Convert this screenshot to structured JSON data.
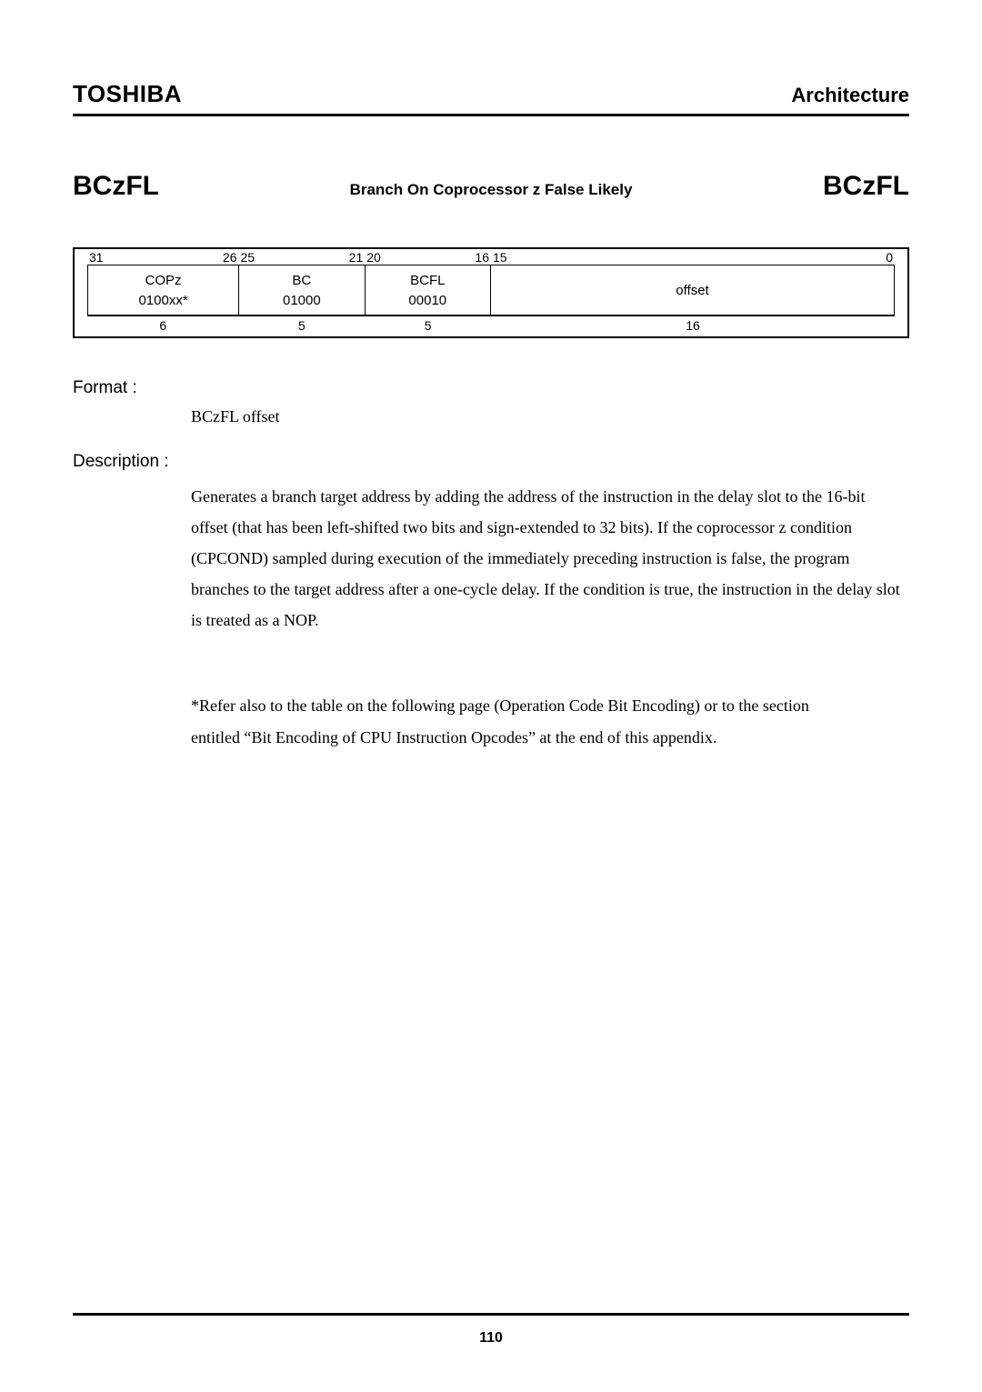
{
  "header": {
    "brand": "TOSHIBA",
    "section": "Architecture"
  },
  "instr": {
    "mnemonic_left": "BCzFL",
    "title": "Branch On Coprocessor z False Likely",
    "mnemonic_right": "BCzFL"
  },
  "encoding": {
    "bit_labels": {
      "f0_hi": "31",
      "f0_lo": "26",
      "f1_hi": "25",
      "f1_lo": "21",
      "f2_hi": "20",
      "f2_lo": "16",
      "f3_hi": "15",
      "f3_lo": "0"
    },
    "fields": [
      {
        "name": "COPz",
        "bits": "0100xx*",
        "width": "6"
      },
      {
        "name": "BC",
        "bits": "01000",
        "width": "5"
      },
      {
        "name": "BCFL",
        "bits": "00010",
        "width": "5"
      },
      {
        "name": "offset",
        "bits": "",
        "width": "16"
      }
    ]
  },
  "format": {
    "label": "Format :",
    "value": "BCzFL  offset"
  },
  "description": {
    "label": "Description :",
    "text": "Generates a branch target address by adding the address of the instruction in the delay slot to the 16-bit offset (that has been left-shifted two bits and sign-extended to 32 bits).    If the coprocessor z condition (CPCOND) sampled during execution of the immediately preceding instruction is false, the program branches to the target address after a one-cycle delay.    If the condition is true, the instruction in the delay slot is treated as a NOP."
  },
  "footnote": {
    "line1": "*Refer also to the table on the following page (Operation Code Bit Encoding) or to the section",
    "line2": " entitled “Bit Encoding of CPU Instruction Opcodes” at the end of this appendix."
  },
  "page_number": "110"
}
